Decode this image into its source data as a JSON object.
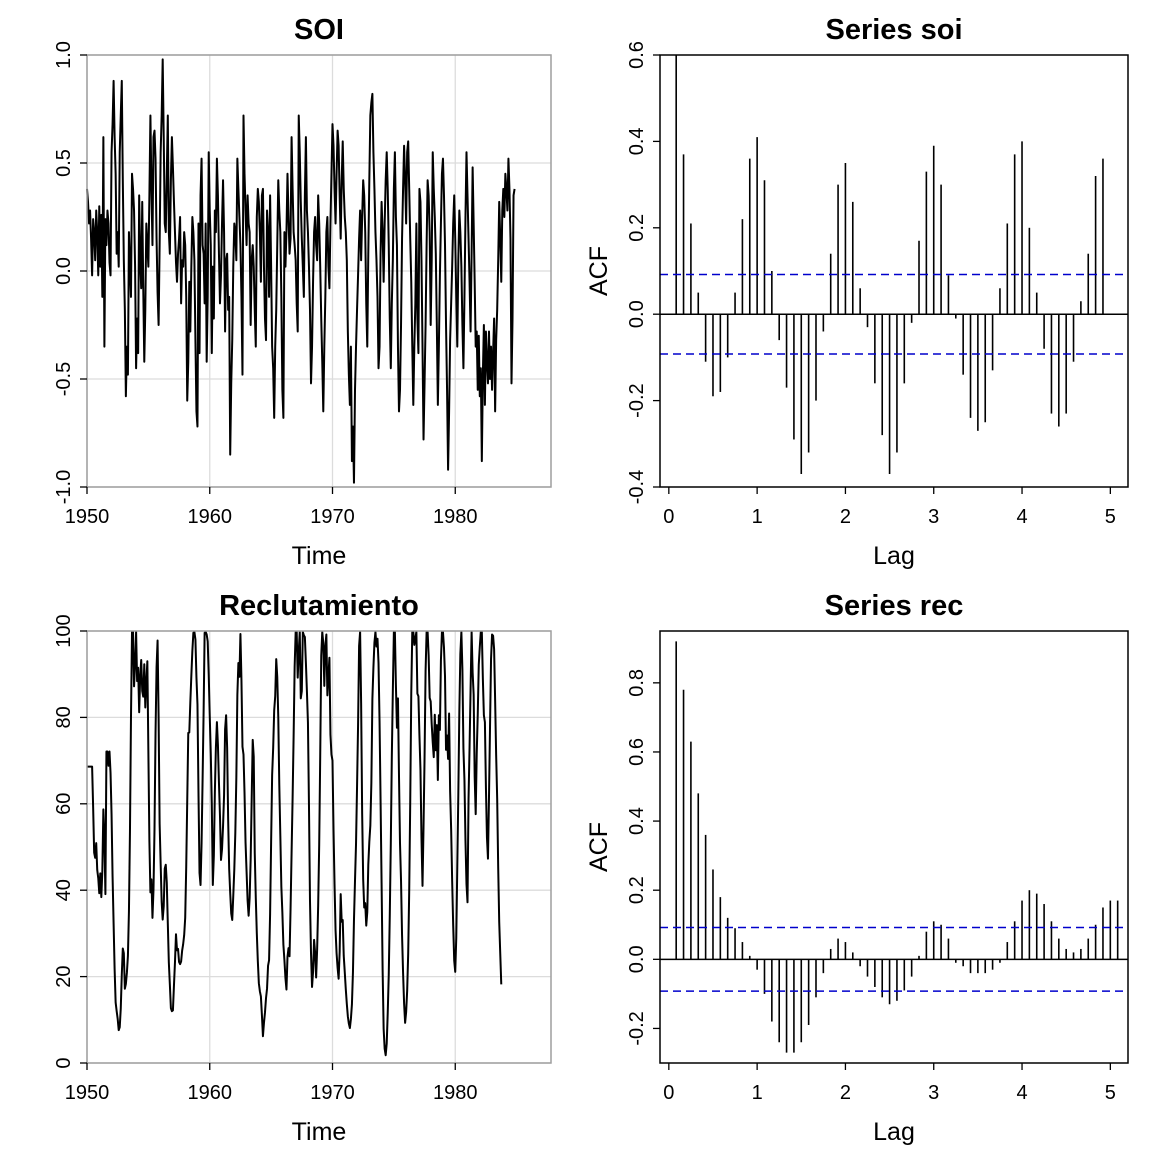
{
  "chart_data": [
    {
      "id": "soi",
      "type": "line",
      "title": "SOI",
      "xlabel": "Time",
      "ylabel": "",
      "xlim": [
        1950,
        1987.8
      ],
      "ylim": [
        -1.0,
        1.0
      ],
      "xticks": [
        1950,
        1960,
        1970,
        1980
      ],
      "yticks": [
        -1.0,
        -0.5,
        0.0,
        0.5,
        1.0
      ],
      "yticklabels": [
        "-1.0",
        "-0.5",
        "0.0",
        "0.5",
        "1.0"
      ],
      "grid": true,
      "x_start": 1950,
      "x_step": 0.08333,
      "values": [
        0.38,
        0.32,
        0.22,
        0.28,
        0.15,
        -0.02,
        0.24,
        0.18,
        0.05,
        0.28,
        0.18,
        -0.02,
        0.3,
        0.02,
        0.26,
        -0.12,
        0.62,
        -0.35,
        0.24,
        0.12,
        0.28,
        0.22,
        0.04,
        -0.02,
        0.55,
        0.68,
        0.88,
        0.62,
        0.45,
        0.08,
        0.18,
        0.02,
        0.55,
        0.72,
        0.88,
        0.42,
        0.05,
        -0.18,
        -0.58,
        -0.35,
        -0.48,
        0.18,
        0.02,
        -0.12,
        0.45,
        0.38,
        0.28,
        0.02,
        -0.45,
        -0.22,
        -0.38,
        0.35,
        0.05,
        -0.08,
        0.32,
        -0.08,
        -0.42,
        -0.18,
        0.22,
        0.12,
        0.02,
        0.35,
        0.72,
        0.38,
        0.12,
        0.62,
        0.65,
        0.52,
        0.15,
        -0.1,
        -0.25,
        0.12,
        0.55,
        0.72,
        0.98,
        0.62,
        0.22,
        0.18,
        0.45,
        0.72,
        0.18,
        0.08,
        0.42,
        0.62,
        0.48,
        0.32,
        0.18,
        0.04,
        -0.05,
        0.08,
        0.15,
        0.25,
        -0.15,
        0.05,
        0.02,
        0.18,
        0.12,
        -0.12,
        -0.6,
        -0.42,
        -0.05,
        -0.28,
        0.02,
        0.25,
        0.18,
        0.05,
        -0.32,
        -0.65,
        -0.72,
        0.22,
        -0.38,
        0.35,
        0.52,
        0.12,
        0.08,
        -0.15,
        0.22,
        -0.42,
        -0.12,
        0.55,
        0.28,
        0.12,
        -0.38,
        0.02,
        -0.22,
        0.28,
        0.18,
        0.52,
        0.35,
        0.08,
        -0.15,
        -0.02,
        0.22,
        0.42,
        0.18,
        -0.28,
        0.05,
        0.08,
        -0.18,
        -0.12,
        -0.85,
        -0.52,
        -0.32,
        0.02,
        0.22,
        0.18,
        0.05,
        0.52,
        0.38,
        0.25,
        0.12,
        -0.12,
        -0.48,
        0.72,
        0.45,
        0.28,
        0.12,
        0.35,
        0.22,
        0.18,
        -0.25,
        0.05,
        0.12,
        0.02,
        -0.18,
        -0.35,
        0.25,
        0.38,
        0.32,
        0.18,
        -0.05,
        0.35,
        0.38,
        0.02,
        -0.22,
        -0.32,
        0.28,
        0.18,
        -0.12,
        0.35,
        0.02,
        -0.35,
        -0.45,
        -0.68,
        -0.35,
        -0.18,
        0.12,
        0.42,
        0.28,
        0.18,
        -0.12,
        -0.55,
        -0.68,
        0.18,
        0.02,
        0.18,
        0.45,
        0.25,
        0.08,
        0.15,
        0.62,
        0.38,
        0.18,
        0.12,
        0.05,
        -0.15,
        -0.28,
        0.72,
        0.55,
        0.32,
        0.15,
        0.02,
        -0.12,
        0.35,
        0.62,
        0.28,
        0.18,
        0.02,
        -0.18,
        -0.52,
        -0.35,
        -0.05,
        0.18,
        0.25,
        0.12,
        0.05,
        0.35,
        0.22,
        0.02,
        -0.22,
        -0.42,
        -0.65,
        -0.35,
        -0.12,
        0.18,
        0.25,
        0.02,
        -0.08,
        0.22,
        0.45,
        0.68,
        0.58,
        0.38,
        0.22,
        0.45,
        0.65,
        0.58,
        0.35,
        0.15,
        0.42,
        0.6,
        0.38,
        0.25,
        0.18,
        0.05,
        -0.28,
        -0.48,
        -0.62,
        -0.35,
        -0.88,
        -0.72,
        -0.98,
        -0.55,
        -0.35,
        -0.18,
        -0.02,
        0.15,
        0.28,
        0.05,
        0.25,
        0.42,
        0.35,
        0.18,
        -0.15,
        -0.35,
        0.08,
        0.42,
        0.72,
        0.78,
        0.82,
        0.55,
        0.38,
        0.18,
        0.05,
        -0.12,
        -0.45,
        -0.35,
        0.08,
        0.32,
        0.18,
        -0.05,
        0.22,
        0.42,
        0.55,
        0.38,
        0.12,
        -0.22,
        -0.45,
        -0.15,
        0.05,
        0.38,
        0.55,
        0.25,
        0.12,
        -0.35,
        -0.65,
        -0.55,
        -0.25,
        0.15,
        0.38,
        0.58,
        0.42,
        0.22,
        0.55,
        0.6,
        0.38,
        0.15,
        -0.05,
        -0.35,
        -0.62,
        -0.35,
        -0.15,
        0.22,
        -0.22,
        -0.38,
        0.38,
        0.32,
        0.05,
        -0.35,
        -0.78,
        -0.52,
        -0.25,
        0.12,
        0.42,
        0.35,
        0.18,
        -0.25,
        0.05,
        0.55,
        0.38,
        0.25,
        0.08,
        -0.25,
        -0.62,
        -0.35,
        -0.02,
        0.22,
        0.45,
        0.52,
        0.35,
        0.12,
        -0.25,
        -0.55,
        -0.92,
        -0.65,
        -0.32,
        -0.15,
        0.02,
        0.22,
        0.35,
        0.15,
        -0.12,
        -0.35,
        0.05,
        0.28,
        0.18,
        0.02,
        -0.25,
        -0.45,
        -0.12,
        0.25,
        0.55,
        0.35,
        0.15,
        -0.05,
        -0.28,
        0.08,
        0.48,
        0.22,
        -0.05,
        -0.35,
        -0.28,
        -0.55,
        -0.3,
        -0.58,
        -0.45,
        -0.88,
        -0.48,
        -0.25,
        -0.62,
        -0.28,
        -0.42,
        -0.52,
        -0.28,
        -0.5,
        -0.35,
        -0.55,
        -0.38,
        -0.22,
        -0.65,
        -0.32,
        -0.18,
        0.05,
        0.32,
        0.15,
        -0.05,
        0.28,
        0.38,
        0.25,
        0.45,
        0.38,
        0.28,
        0.52,
        0.38,
        0.15,
        -0.52,
        -0.22,
        0.35,
        0.38
      ]
    },
    {
      "id": "acf-soi",
      "type": "bar",
      "title": "Series soi",
      "xlabel": "Lag",
      "ylabel": "ACF",
      "xlim": [
        -0.1,
        5.2
      ],
      "ylim": [
        -0.4,
        0.6
      ],
      "xticks": [
        0,
        1,
        2,
        3,
        4,
        5
      ],
      "yticks": [
        -0.4,
        -0.2,
        0.0,
        0.2,
        0.4,
        0.6
      ],
      "yticklabels": [
        "-0.4",
        "-0.2",
        "0.0",
        "0.2",
        "0.4",
        "0.6"
      ],
      "conf_level": 0.092,
      "lag_step": 0.08333,
      "lag_start": 1,
      "values": [
        0.6,
        0.37,
        0.21,
        0.05,
        -0.11,
        -0.19,
        -0.18,
        -0.1,
        0.05,
        0.22,
        0.36,
        0.41,
        0.31,
        0.1,
        -0.06,
        -0.17,
        -0.29,
        -0.37,
        -0.32,
        -0.2,
        -0.04,
        0.14,
        0.3,
        0.35,
        0.26,
        0.06,
        -0.03,
        -0.16,
        -0.28,
        -0.37,
        -0.32,
        -0.16,
        -0.02,
        0.17,
        0.33,
        0.39,
        0.3,
        0.09,
        -0.01,
        -0.14,
        -0.24,
        -0.27,
        -0.25,
        -0.13,
        0.06,
        0.21,
        0.37,
        0.4,
        0.2,
        0.05,
        -0.08,
        -0.23,
        -0.26,
        -0.23,
        -0.11,
        0.03,
        0.14,
        0.32,
        0.36
      ]
    },
    {
      "id": "rec",
      "type": "line",
      "title": "Reclutamiento",
      "xlabel": "Time",
      "ylabel": "",
      "xlim": [
        1950,
        1987.8
      ],
      "ylim": [
        0,
        100
      ],
      "xticks": [
        1950,
        1960,
        1970,
        1980
      ],
      "yticks": [
        0,
        20,
        40,
        60,
        80,
        100
      ],
      "yticklabels": [
        "0",
        "20",
        "40",
        "60",
        "80",
        "100"
      ],
      "grid": true,
      "x_start": 1950,
      "x_step": 0.08333,
      "values": [
        68.6,
        68.6,
        68.6,
        68.6,
        68.6,
        68.6,
        59.2,
        48.7,
        47.5,
        50.9,
        44.7,
        42.8,
        39.3,
        43.9,
        38.4,
        44.5,
        58.7,
        52.1,
        39.1,
        72.1,
        72.1,
        68.8,
        72.1,
        67.2,
        57.6,
        43.2,
        32.3,
        21.7,
        14.0,
        12.0,
        10.2,
        7.6,
        8.3,
        12.6,
        20.4,
        26.5,
        25.4,
        17.2,
        18.3,
        20.9,
        24.8,
        35.1,
        53.5,
        79.9,
        99.8,
        99.8,
        87.2,
        92.3,
        99.8,
        88.4,
        91.5,
        81.2,
        89.5,
        93.3,
        86.1,
        84.8,
        92.3,
        82.3,
        88.2,
        93.0,
        72.1,
        51.3,
        39.5,
        42.5,
        33.6,
        40.1,
        54.2,
        76.3,
        91.6,
        97.8,
        80.2,
        55.4,
        46.1,
        37.3,
        33.2,
        36.3,
        45.0,
        45.9,
        41.7,
        32.3,
        23.3,
        18.2,
        12.7,
        12.0,
        12.2,
        17.9,
        23.3,
        29.8,
        26.1,
        26.4,
        23.4,
        22.9,
        23.5,
        26.0,
        27.5,
        29.6,
        33.6,
        45.4,
        60.8,
        76.4,
        76.5,
        83.4,
        89.6,
        95.4,
        99.6,
        99.8,
        98.0,
        89.2,
        83.0,
        62.4,
        44.0,
        41.2,
        50.8,
        65.6,
        81.3,
        99.6,
        99.8,
        99.2,
        97.6,
        89.9,
        80.3,
        71.6,
        60.0,
        41.2,
        48.0,
        62.7,
        73.0,
        78.9,
        73.6,
        64.9,
        57.2,
        47.0,
        49.5,
        54.8,
        62.0,
        77.2,
        80.5,
        73.0,
        56.3,
        44.9,
        39.4,
        34.6,
        33.1,
        38.7,
        44.8,
        53.3,
        66.1,
        85.2,
        92.6,
        89.4,
        99.3,
        88.5,
        73.2,
        71.4,
        62.5,
        51.0,
        44.3,
        37.7,
        34.1,
        38.2,
        47.1,
        61.1,
        74.8,
        70.9,
        48.6,
        38.3,
        30.1,
        23.6,
        18.5,
        16.6,
        15.4,
        11.1,
        6.2,
        9.3,
        11.7,
        15.0,
        17.2,
        22.5,
        23.8,
        34.5,
        51.1,
        66.7,
        72.9,
        81.6,
        84.9,
        93.5,
        89.3,
        80.0,
        64.3,
        52.6,
        40.8,
        34.8,
        27.4,
        23.8,
        19.7,
        17.0,
        24.6,
        26.6,
        24.7,
        35.6,
        48.6,
        61.3,
        75.7,
        91.8,
        99.8,
        99.8,
        89.2,
        95.3,
        99.8,
        84.4,
        86.1,
        99.8,
        99.0,
        98.6,
        92.6,
        86.0,
        78.8,
        59.7,
        37.6,
        25.4,
        17.6,
        21.1,
        28.5,
        25.6,
        19.8,
        26.4,
        36.5,
        50.6,
        71.1,
        94.3,
        99.8,
        97.2,
        87.3,
        96.5,
        99.2,
        85.1,
        89.5,
        93.8,
        76.0,
        71.4,
        70.0,
        53.9,
        41.3,
        30.7,
        25.4,
        22.0,
        19.5,
        25.7,
        39.1,
        32.7,
        33.1,
        24.8,
        21.0,
        17.1,
        13.7,
        10.8,
        9.1,
        8.1,
        10.2,
        13.6,
        21.0,
        33.1,
        42.2,
        50.7,
        63.9,
        78.1,
        96.5,
        99.8,
        83.3,
        57.7,
        42.5,
        36.0,
        37.0,
        31.8,
        34.9,
        45.9,
        51.2,
        55.0,
        64.8,
        84.3,
        91.5,
        97.3,
        99.8,
        96.4,
        98.2,
        92.6,
        79.1,
        60.8,
        41.6,
        21.7,
        7.9,
        3.3,
        1.8,
        4.5,
        11.6,
        20.4,
        34.1,
        50.8,
        70.9,
        86.2,
        99.8,
        99.8,
        87.4,
        77.6,
        84.4,
        66.7,
        50.9,
        42.2,
        29.6,
        20.9,
        13.8,
        9.3,
        11.8,
        16.7,
        25.3,
        39.9,
        60.4,
        85.6,
        99.8,
        99.8,
        96.8,
        98.3,
        99.8,
        85.5,
        84.9,
        75.8,
        67.9,
        52.1,
        41.0,
        54.8,
        70.6,
        90.7,
        99.8,
        99.8,
        94.3,
        84.5,
        83.7,
        78.4,
        74.2,
        70.8,
        80.6,
        72.4,
        78.2,
        65.5,
        80.5,
        77.1,
        93.2,
        99.8,
        99.8,
        96.1,
        89.5,
        72.5,
        75.8,
        70.4,
        80.9,
        62.9,
        54.1,
        42.1,
        31.8,
        23.7,
        21.1,
        28.9,
        45.6,
        62.0,
        81.3,
        94.7,
        99.8,
        91.1,
        72.8,
        65.5,
        51.5,
        41.4,
        37.2,
        61.2,
        73.1,
        86.6,
        99.8,
        90.4,
        85.3,
        66.3,
        57.6,
        71.6,
        80.6,
        92.2,
        96.3,
        99.8,
        99.8,
        88.9,
        80.5,
        78.9,
        63.7,
        52.2,
        47.3,
        61.5,
        77.8,
        93.5,
        99.2,
        98.9,
        95.8,
        84.0,
        71.3,
        61.2,
        45.2,
        32.6,
        25.3,
        18.2
      ]
    },
    {
      "id": "acf-rec",
      "type": "bar",
      "title": "Series rec",
      "xlabel": "Lag",
      "ylabel": "ACF",
      "xlim": [
        -0.1,
        5.2
      ],
      "ylim": [
        -0.3,
        0.95
      ],
      "xticks": [
        0,
        1,
        2,
        3,
        4,
        5
      ],
      "yticks": [
        -0.2,
        0.0,
        0.2,
        0.4,
        0.6,
        0.8
      ],
      "yticklabels": [
        "-0.2",
        "0.0",
        "0.2",
        "0.4",
        "0.6",
        "0.8"
      ],
      "conf_level": 0.092,
      "lag_step": 0.08333,
      "lag_start": 1,
      "values": [
        0.92,
        0.78,
        0.63,
        0.48,
        0.36,
        0.26,
        0.18,
        0.12,
        0.09,
        0.05,
        0.01,
        -0.03,
        -0.1,
        -0.18,
        -0.24,
        -0.27,
        -0.27,
        -0.24,
        -0.19,
        -0.11,
        -0.04,
        0.03,
        0.06,
        0.05,
        0.02,
        -0.02,
        -0.05,
        -0.08,
        -0.11,
        -0.13,
        -0.12,
        -0.09,
        -0.05,
        0.01,
        0.08,
        0.11,
        0.1,
        0.06,
        -0.01,
        -0.02,
        -0.04,
        -0.04,
        -0.04,
        -0.03,
        -0.01,
        0.05,
        0.11,
        0.17,
        0.2,
        0.19,
        0.16,
        0.11,
        0.06,
        0.03,
        0.02,
        0.03,
        0.06,
        0.1,
        0.15,
        0.17,
        0.17
      ]
    }
  ]
}
